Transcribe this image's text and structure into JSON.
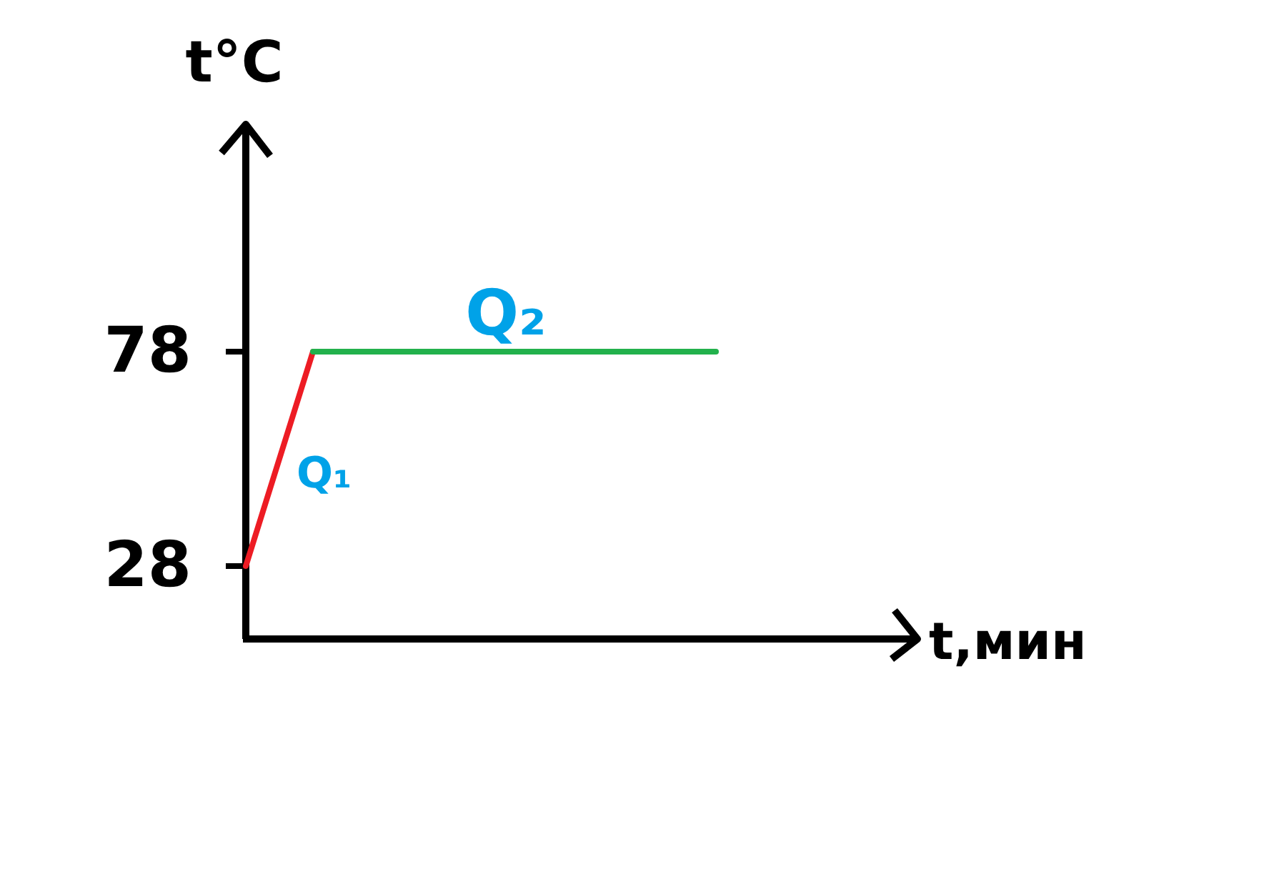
{
  "chart_data": {
    "type": "line",
    "ylabel": "t°C",
    "xlabel": "t,мин",
    "categories": [
      null,
      null,
      null,
      null,
      null,
      null,
      null,
      null,
      null,
      null,
      null
    ],
    "ylim": [
      11,
      131
    ],
    "yticks": [
      28,
      78
    ],
    "tick_labels": "y",
    "series": [
      {
        "name": "Q₁",
        "color": "#ed1c24",
        "values": [
          28,
          78,
          null,
          null,
          null,
          null,
          null,
          null,
          null,
          null,
          null
        ]
      },
      {
        "name": "Q₂",
        "color": "#22b14c",
        "values": [
          null,
          78,
          78,
          78,
          78,
          78,
          78,
          78,
          null,
          null,
          null
        ]
      }
    ]
  }
}
